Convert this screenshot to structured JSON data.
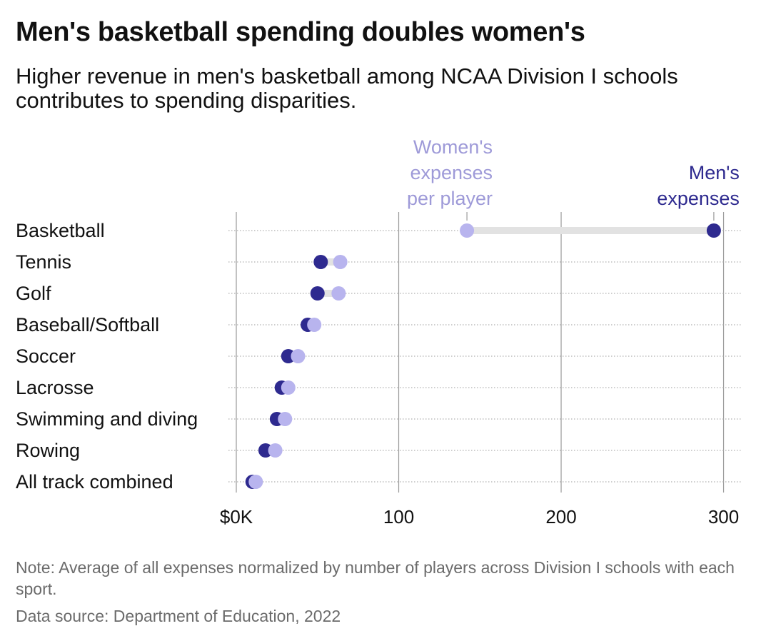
{
  "header": {
    "title": "Men's basketball spending doubles women's",
    "subtitle": "Higher revenue in men's basketball among NCAA Division I schools contributes to spending disparities."
  },
  "footer": {
    "note": "Note: Average of all expenses normalized by number of players across Division I schools with each sport.",
    "source": "Data source: Department of Education, 2022"
  },
  "colors": {
    "men": "#2e2a8f",
    "women": "#b8b4ee",
    "women_label": "#9e9ad8",
    "connector": "#e2e2e2",
    "gridline": "#9a9a9a",
    "row_rule": "#b0b0b0"
  },
  "chart_data": {
    "type": "dot",
    "title": "Men's basketball spending doubles women's",
    "categories": [
      "Basketball",
      "Tennis",
      "Golf",
      "Baseball/Softball",
      "Soccer",
      "Lacrosse",
      "Swimming and diving",
      "Rowing",
      "All track combined"
    ],
    "series": [
      {
        "name": "Women's expenses per player",
        "values": [
          142,
          64,
          63,
          48,
          38,
          32,
          30,
          24,
          12
        ]
      },
      {
        "name": "Men's expenses",
        "values": [
          294,
          52,
          50,
          44,
          32,
          28,
          25,
          18,
          10
        ]
      }
    ],
    "x_ticks": [
      {
        "value": 0,
        "label": "$0K"
      },
      {
        "value": 100,
        "label": "100"
      },
      {
        "value": 200,
        "label": "200"
      },
      {
        "value": 300,
        "label": "300"
      }
    ],
    "xlim": [
      0,
      305
    ],
    "annotations": [
      {
        "series": "Women's expenses per player",
        "lines": [
          "Women's",
          "expenses",
          "per player"
        ],
        "category": "Basketball"
      },
      {
        "series": "Men's expenses",
        "lines": [
          "Men's",
          "expenses"
        ],
        "category": "Basketball"
      }
    ],
    "grid": true,
    "legend": "direct labels"
  }
}
